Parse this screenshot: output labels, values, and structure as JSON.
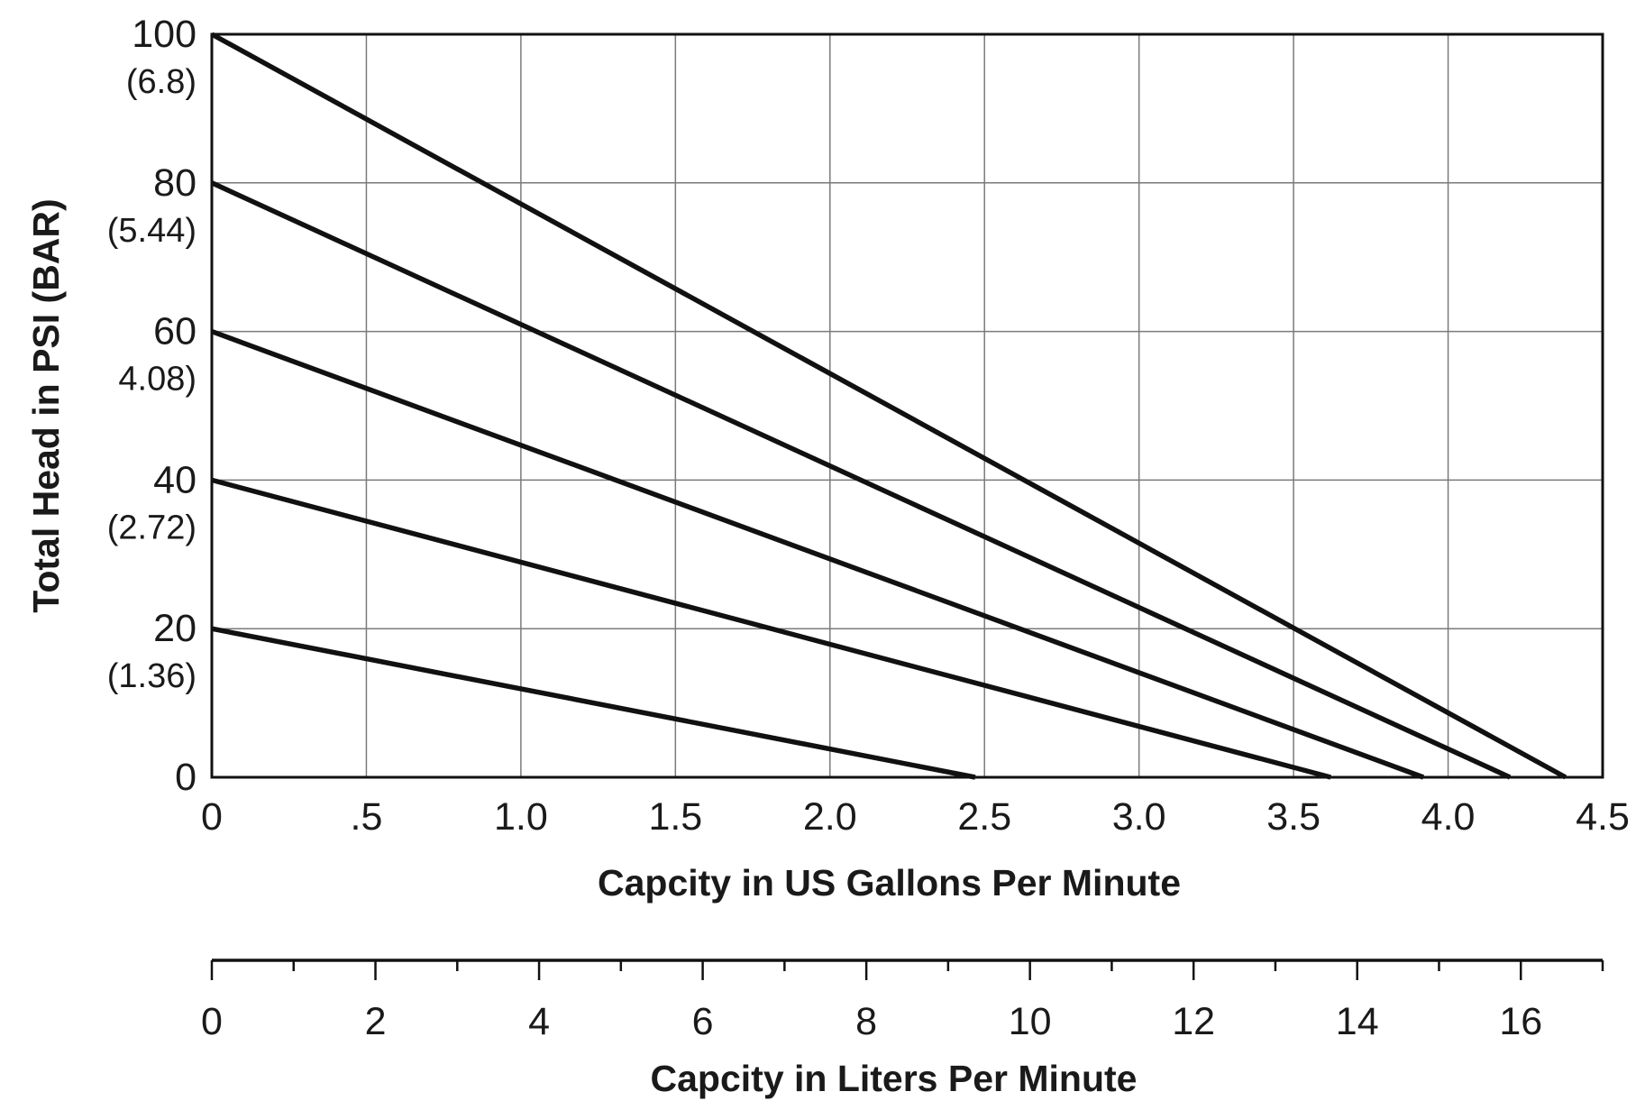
{
  "chart_data": {
    "type": "line",
    "xlabel": "Capcity in US Gallons Per Minute",
    "ylabel": "Total Head in PSI (BAR)",
    "xlim": [
      0,
      4.5
    ],
    "ylim": [
      0,
      100
    ],
    "grid": true,
    "x_ticks": [
      {
        "value": 0,
        "label": "0"
      },
      {
        "value": 0.5,
        "label": ".5"
      },
      {
        "value": 1.0,
        "label": "1.0"
      },
      {
        "value": 1.5,
        "label": "1.5"
      },
      {
        "value": 2.0,
        "label": "2.0"
      },
      {
        "value": 2.5,
        "label": "2.5"
      },
      {
        "value": 3.0,
        "label": "3.0"
      },
      {
        "value": 3.5,
        "label": "3.5"
      },
      {
        "value": 4.0,
        "label": "4.0"
      },
      {
        "value": 4.5,
        "label": "4.5"
      }
    ],
    "y_ticks": [
      {
        "value": 0,
        "psi": "0",
        "bar": ""
      },
      {
        "value": 20,
        "psi": "20",
        "bar": "(1.36)"
      },
      {
        "value": 40,
        "psi": "40",
        "bar": "(2.72)"
      },
      {
        "value": 60,
        "psi": "60",
        "bar": "4.08)"
      },
      {
        "value": 80,
        "psi": "80",
        "bar": "(5.44)"
      },
      {
        "value": 100,
        "psi": "100",
        "bar": "(6.8)"
      }
    ],
    "series": [
      {
        "x": [
          0,
          4.38
        ],
        "y": [
          100,
          0
        ]
      },
      {
        "x": [
          0,
          4.2
        ],
        "y": [
          80,
          0
        ]
      },
      {
        "x": [
          0,
          3.92
        ],
        "y": [
          60,
          0
        ]
      },
      {
        "x": [
          0,
          3.62
        ],
        "y": [
          40,
          0
        ]
      },
      {
        "x": [
          0,
          2.47
        ],
        "y": [
          20,
          0
        ]
      }
    ],
    "secondary_x_axis": {
      "xlabel": "Capcity in Liters Per Minute",
      "xlim": [
        0,
        17
      ],
      "minor_step": 1,
      "ticks": [
        {
          "value": 0,
          "label": "0"
        },
        {
          "value": 2,
          "label": "2"
        },
        {
          "value": 4,
          "label": "4"
        },
        {
          "value": 6,
          "label": "6"
        },
        {
          "value": 8,
          "label": "8"
        },
        {
          "value": 10,
          "label": "10"
        },
        {
          "value": 12,
          "label": "12"
        },
        {
          "value": 14,
          "label": "14"
        },
        {
          "value": 16,
          "label": "16"
        }
      ]
    },
    "colors": {
      "line": "#111111",
      "grid": "#7a7a7a",
      "frame": "#111111",
      "text": "#1a1a1a"
    }
  }
}
